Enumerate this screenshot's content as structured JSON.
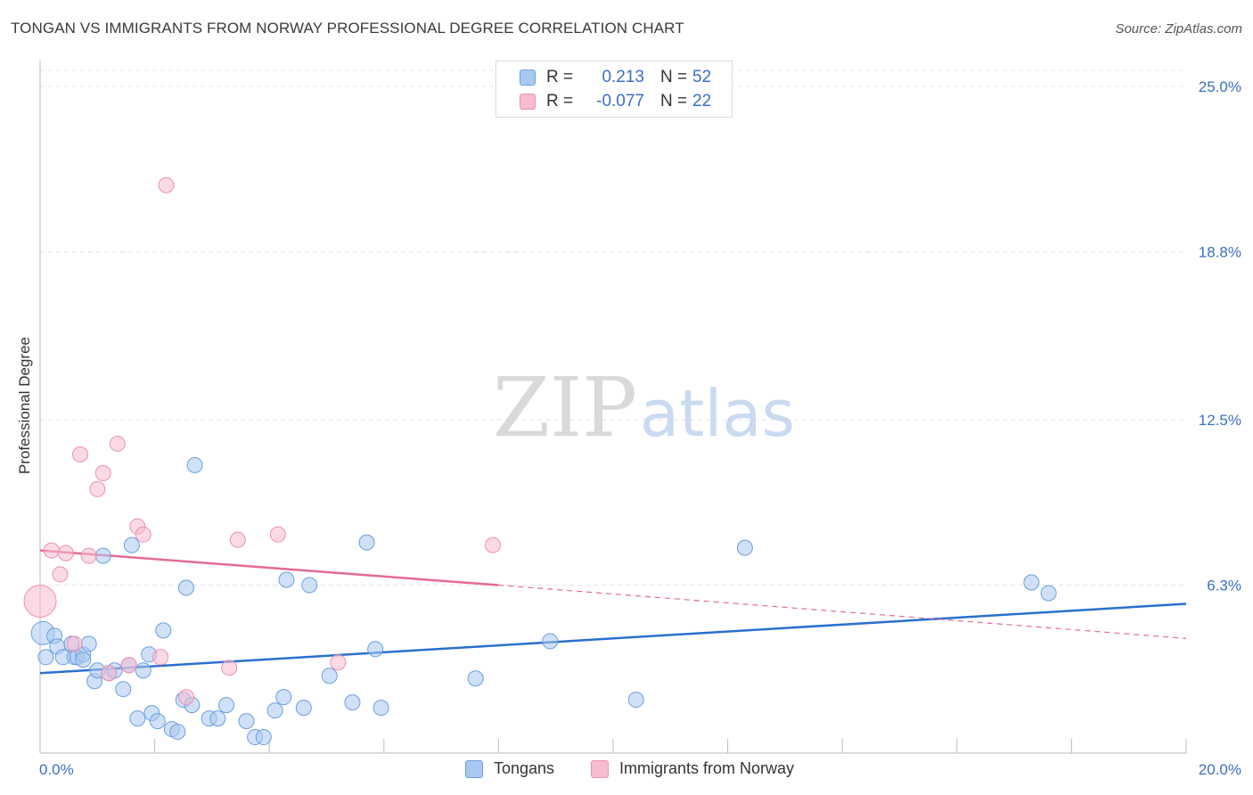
{
  "title": "TONGAN VS IMMIGRANTS FROM NORWAY PROFESSIONAL DEGREE CORRELATION CHART",
  "source": "Source: ZipAtlas.com",
  "watermark": {
    "zip": "ZIP",
    "atlas": "atlas"
  },
  "legend": {
    "rows": [
      {
        "r_label": "R =",
        "r_value": "0.213",
        "n_label": "N =",
        "n_value": "52"
      },
      {
        "r_label": "R =",
        "r_value": "-0.077",
        "n_label": "N =",
        "n_value": "22"
      }
    ]
  },
  "bottom_legend": {
    "series1": "Tongans",
    "series2": "Immigrants from Norway"
  },
  "colors": {
    "blue_fill": "#a9c8f0",
    "blue_stroke": "#6a9fe0",
    "blue_line": "#2a6fcd",
    "pink_fill": "#f7bcd0",
    "pink_stroke": "#ee8fb0",
    "pink_line": "#e46b97",
    "axis_text": "#3b6fbf",
    "grid": "#e3e3e3"
  },
  "chart_data": {
    "type": "scatter",
    "title": "TONGAN VS IMMIGRANTS FROM NORWAY PROFESSIONAL DEGREE CORRELATION CHART",
    "xlabel": "",
    "ylabel": "Professional Degree",
    "xlim": [
      0,
      20
    ],
    "ylim": [
      0,
      25
    ],
    "x_tick_labels": [
      "0.0%",
      "20.0%"
    ],
    "y_ticks": [
      6.3,
      12.5,
      18.8,
      25.0
    ],
    "y_tick_labels": [
      "6.3%",
      "12.5%",
      "18.8%",
      "25.0%"
    ],
    "grid": true,
    "legend_position": "top-center",
    "series": [
      {
        "name": "Tongans",
        "R": 0.213,
        "N": 52,
        "trend": {
          "x": [
            0,
            20
          ],
          "y": [
            3.0,
            5.6
          ]
        },
        "points": [
          {
            "x": 0.05,
            "y": 4.5,
            "s": 2
          },
          {
            "x": 0.1,
            "y": 3.6,
            "s": 1
          },
          {
            "x": 0.25,
            "y": 4.4,
            "s": 1
          },
          {
            "x": 0.3,
            "y": 4.0,
            "s": 1
          },
          {
            "x": 0.4,
            "y": 3.6,
            "s": 1
          },
          {
            "x": 0.55,
            "y": 4.1,
            "s": 1
          },
          {
            "x": 0.6,
            "y": 3.6,
            "s": 1
          },
          {
            "x": 0.65,
            "y": 3.6,
            "s": 1
          },
          {
            "x": 0.75,
            "y": 3.7,
            "s": 1
          },
          {
            "x": 0.75,
            "y": 3.5,
            "s": 1
          },
          {
            "x": 0.85,
            "y": 4.1,
            "s": 1
          },
          {
            "x": 0.95,
            "y": 2.7,
            "s": 1
          },
          {
            "x": 1.0,
            "y": 3.1,
            "s": 1
          },
          {
            "x": 1.1,
            "y": 7.4,
            "s": 1
          },
          {
            "x": 1.2,
            "y": 3.0,
            "s": 1
          },
          {
            "x": 1.3,
            "y": 3.1,
            "s": 1
          },
          {
            "x": 1.45,
            "y": 2.4,
            "s": 1
          },
          {
            "x": 1.55,
            "y": 3.3,
            "s": 1
          },
          {
            "x": 1.6,
            "y": 7.8,
            "s": 1
          },
          {
            "x": 1.7,
            "y": 1.3,
            "s": 1
          },
          {
            "x": 1.8,
            "y": 3.1,
            "s": 1
          },
          {
            "x": 1.9,
            "y": 3.7,
            "s": 1
          },
          {
            "x": 1.95,
            "y": 1.5,
            "s": 1
          },
          {
            "x": 2.05,
            "y": 1.2,
            "s": 1
          },
          {
            "x": 2.15,
            "y": 4.6,
            "s": 1
          },
          {
            "x": 2.3,
            "y": 0.9,
            "s": 1
          },
          {
            "x": 2.4,
            "y": 0.8,
            "s": 1
          },
          {
            "x": 2.5,
            "y": 2.0,
            "s": 1
          },
          {
            "x": 2.55,
            "y": 6.2,
            "s": 1
          },
          {
            "x": 2.65,
            "y": 1.8,
            "s": 1
          },
          {
            "x": 2.7,
            "y": 10.8,
            "s": 1
          },
          {
            "x": 2.95,
            "y": 1.3,
            "s": 1
          },
          {
            "x": 3.1,
            "y": 1.3,
            "s": 1
          },
          {
            "x": 3.25,
            "y": 1.8,
            "s": 1
          },
          {
            "x": 3.6,
            "y": 1.2,
            "s": 1
          },
          {
            "x": 3.75,
            "y": 0.6,
            "s": 1
          },
          {
            "x": 3.9,
            "y": 0.6,
            "s": 1
          },
          {
            "x": 4.1,
            "y": 1.6,
            "s": 1
          },
          {
            "x": 4.25,
            "y": 2.1,
            "s": 1
          },
          {
            "x": 4.3,
            "y": 6.5,
            "s": 1
          },
          {
            "x": 4.6,
            "y": 1.7,
            "s": 1
          },
          {
            "x": 4.7,
            "y": 6.3,
            "s": 1
          },
          {
            "x": 5.05,
            "y": 2.9,
            "s": 1
          },
          {
            "x": 5.45,
            "y": 1.9,
            "s": 1
          },
          {
            "x": 5.7,
            "y": 7.9,
            "s": 1
          },
          {
            "x": 5.85,
            "y": 3.9,
            "s": 1
          },
          {
            "x": 5.95,
            "y": 1.7,
            "s": 1
          },
          {
            "x": 7.6,
            "y": 2.8,
            "s": 1
          },
          {
            "x": 8.9,
            "y": 4.2,
            "s": 1
          },
          {
            "x": 10.4,
            "y": 2.0,
            "s": 1
          },
          {
            "x": 12.3,
            "y": 7.7,
            "s": 1
          },
          {
            "x": 17.3,
            "y": 6.4,
            "s": 1
          },
          {
            "x": 17.6,
            "y": 6.0,
            "s": 1
          }
        ]
      },
      {
        "name": "Immigrants from Norway",
        "R": -0.077,
        "N": 22,
        "trend": {
          "x": [
            0,
            8.0,
            20
          ],
          "y": [
            7.6,
            6.3,
            4.3
          ],
          "solid_until": 8.0
        },
        "points": [
          {
            "x": 0.0,
            "y": 5.7,
            "s": 3
          },
          {
            "x": 0.2,
            "y": 7.6,
            "s": 1
          },
          {
            "x": 0.35,
            "y": 6.7,
            "s": 1
          },
          {
            "x": 0.45,
            "y": 7.5,
            "s": 1
          },
          {
            "x": 0.6,
            "y": 4.1,
            "s": 1
          },
          {
            "x": 0.7,
            "y": 11.2,
            "s": 1
          },
          {
            "x": 0.85,
            "y": 7.4,
            "s": 1
          },
          {
            "x": 1.0,
            "y": 9.9,
            "s": 1
          },
          {
            "x": 1.1,
            "y": 10.5,
            "s": 1
          },
          {
            "x": 1.2,
            "y": 3.0,
            "s": 1
          },
          {
            "x": 1.35,
            "y": 11.6,
            "s": 1
          },
          {
            "x": 1.55,
            "y": 3.3,
            "s": 1
          },
          {
            "x": 1.7,
            "y": 8.5,
            "s": 1
          },
          {
            "x": 1.8,
            "y": 8.2,
            "s": 1
          },
          {
            "x": 2.1,
            "y": 3.6,
            "s": 1
          },
          {
            "x": 2.2,
            "y": 21.3,
            "s": 1
          },
          {
            "x": 2.55,
            "y": 2.1,
            "s": 1
          },
          {
            "x": 3.3,
            "y": 3.2,
            "s": 1
          },
          {
            "x": 3.45,
            "y": 8.0,
            "s": 1
          },
          {
            "x": 4.15,
            "y": 8.2,
            "s": 1
          },
          {
            "x": 5.2,
            "y": 3.4,
            "s": 1
          },
          {
            "x": 7.9,
            "y": 7.8,
            "s": 1
          }
        ]
      }
    ]
  }
}
